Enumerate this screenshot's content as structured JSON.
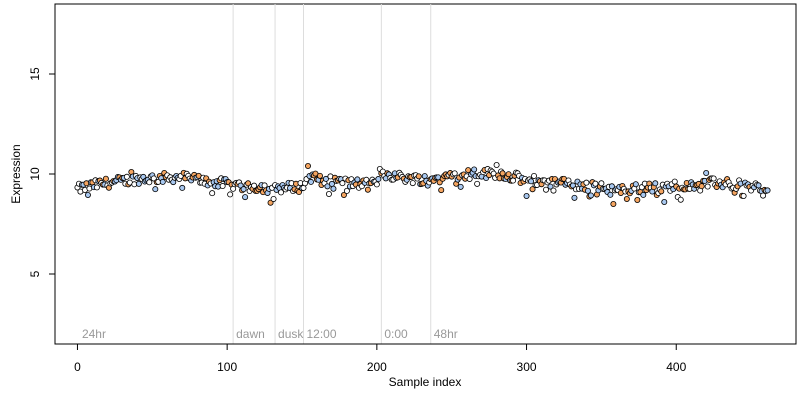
{
  "chart_data": {
    "type": "scatter",
    "title": "",
    "xlabel": "Sample index",
    "ylabel": "Expression",
    "xlim": [
      -15,
      480
    ],
    "ylim": [
      1.5,
      18.5
    ],
    "x_ticks": [
      0,
      100,
      200,
      300,
      400
    ],
    "y_ticks": [
      5,
      10,
      15
    ],
    "grid": false,
    "legend": "none",
    "segment_markers": [
      {
        "x": 104,
        "label": "dawn"
      },
      {
        "x": 132,
        "label": "dusk"
      },
      {
        "x": 151,
        "label": "12:00"
      },
      {
        "x": 203,
        "label": "0:00"
      },
      {
        "x": 236,
        "label": "48hr"
      }
    ],
    "segment_labels_extra": [
      {
        "x": 3,
        "label": "24hr"
      }
    ],
    "colors": {
      "orange": "#F4A460",
      "blue": "#A8C8F0",
      "white": "#FFFFFF",
      "point_border": "#000000",
      "vline": "#DDDDDD",
      "segment_text": "#999999"
    },
    "points": {
      "count": 462,
      "y_mean": 9.6,
      "y_range": [
        8.4,
        10.4
      ]
    }
  }
}
